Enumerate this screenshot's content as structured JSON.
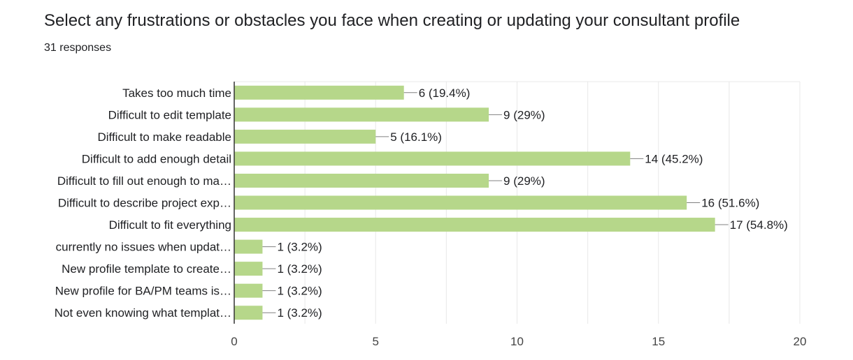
{
  "chart_data": {
    "type": "bar",
    "orientation": "horizontal",
    "title": "Select any frustrations or obstacles you face when creating or updating your consultant profile",
    "subtitle": "31 responses",
    "categories": [
      "Takes too much time",
      "Difficult to edit template",
      "Difficult to make readable",
      "Difficult to add enough detail",
      "Difficult to fill out enough to ma…",
      "Difficult to describe project exp…",
      "Difficult to fit everything",
      "currently no issues when updat…",
      "New profile template to create…",
      "New profile for BA/PM teams is…",
      "Not even knowing what templat…"
    ],
    "values": [
      6,
      9,
      5,
      14,
      9,
      16,
      17,
      1,
      1,
      1,
      1
    ],
    "data_labels": [
      "6 (19.4%)",
      "9 (29%)",
      "5 (16.1%)",
      "14 (45.2%)",
      "9 (29%)",
      "16 (51.6%)",
      "17 (54.8%)",
      "1 (3.2%)",
      "1 (3.2%)",
      "1 (3.2%)",
      "1 (3.2%)"
    ],
    "x_ticks": [
      0,
      5,
      10,
      15,
      20
    ],
    "xlim": [
      0,
      20
    ],
    "grid": true,
    "legend": "none",
    "bar_color": "#b6d78a",
    "leader_color": "#808080"
  }
}
